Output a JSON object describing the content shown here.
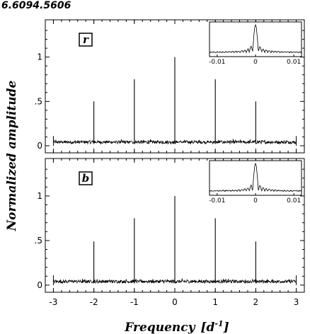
{
  "title": "6.6094.5606",
  "chart_data": [
    {
      "type": "line",
      "panel_label": "r",
      "xlim": [
        -3.2,
        3.2
      ],
      "ylim": [
        -0.08,
        1.42
      ],
      "yticks": [
        0,
        0.5,
        1
      ],
      "ytick_labels": [
        "0",
        ".5",
        "1"
      ],
      "noise_floor": 0.04,
      "peaks": [
        {
          "x": -2,
          "y": 0.5
        },
        {
          "x": -1,
          "y": 0.75
        },
        {
          "x": 0,
          "y": 1.0
        },
        {
          "x": 1,
          "y": 0.75
        },
        {
          "x": 2,
          "y": 0.5
        }
      ],
      "inset": {
        "xlim": [
          -0.012,
          0.012
        ],
        "xticks": [
          -0.01,
          0,
          0.01
        ],
        "xtick_labels": [
          "-0.01",
          "0",
          "0.01"
        ]
      }
    },
    {
      "type": "line",
      "panel_label": "b",
      "xlim": [
        -3.2,
        3.2
      ],
      "ylim": [
        -0.08,
        1.42
      ],
      "yticks": [
        0,
        0.5,
        1
      ],
      "ytick_labels": [
        "0",
        ".5",
        "1"
      ],
      "noise_floor": 0.04,
      "peaks": [
        {
          "x": -2,
          "y": 0.49
        },
        {
          "x": -1,
          "y": 0.75
        },
        {
          "x": 0,
          "y": 1.0
        },
        {
          "x": 1,
          "y": 0.75
        },
        {
          "x": 2,
          "y": 0.49
        }
      ],
      "inset": {
        "xlim": [
          -0.012,
          0.012
        ],
        "xticks": [
          -0.01,
          0,
          0.01
        ],
        "xtick_labels": [
          "-0.01",
          "0",
          "0.01"
        ]
      }
    }
  ],
  "axes": {
    "ylabel": "Normalized amplitude",
    "xlabel_main": "Frequency",
    "xlabel_unit_base": "[d",
    "xlabel_unit_exp": "-1",
    "xlabel_unit_close": "]",
    "xticks": [
      -3,
      -2,
      -1,
      0,
      1,
      2,
      3
    ],
    "xtick_labels": [
      "-3",
      "-2",
      "-1",
      "0",
      "1",
      "2",
      "3"
    ]
  }
}
